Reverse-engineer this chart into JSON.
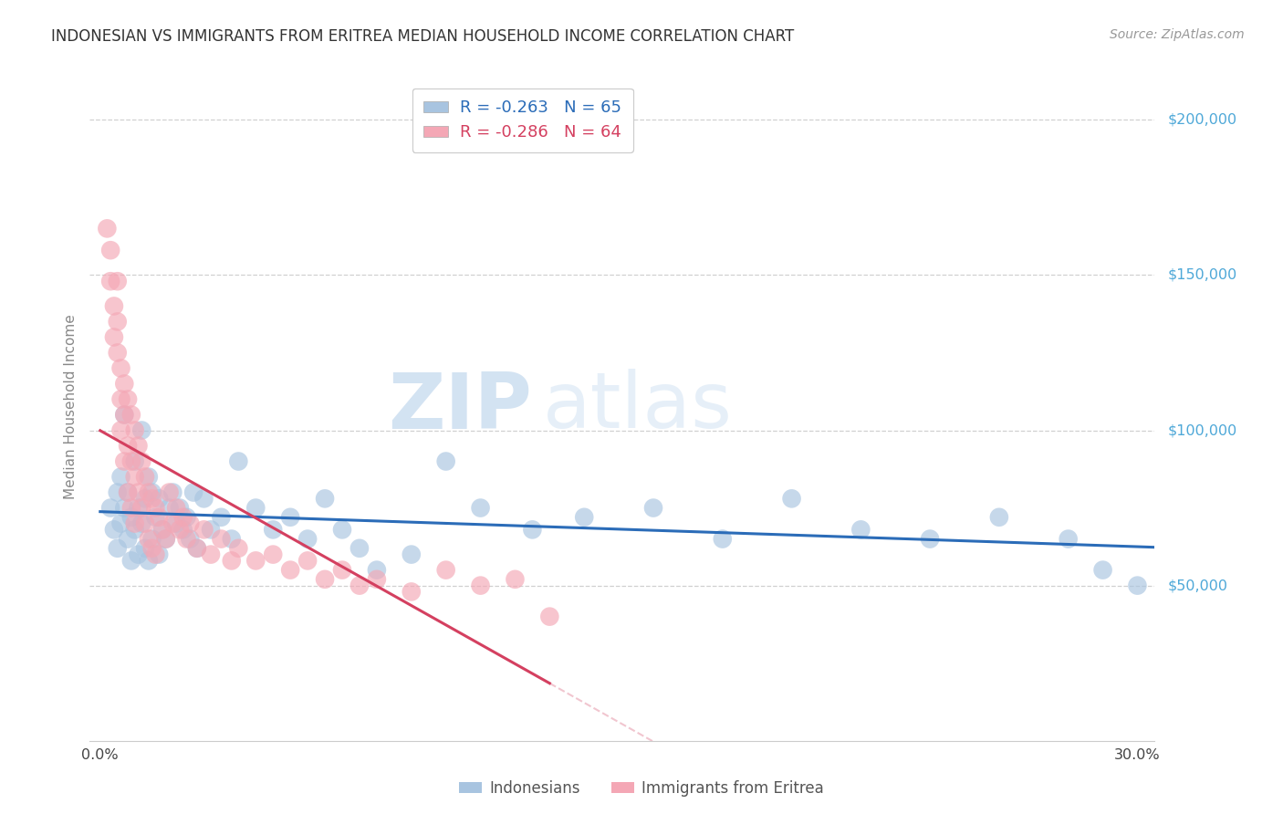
{
  "title": "INDONESIAN VS IMMIGRANTS FROM ERITREA MEDIAN HOUSEHOLD INCOME CORRELATION CHART",
  "source": "Source: ZipAtlas.com",
  "ylabel": "Median Household Income",
  "watermark_zip": "ZIP",
  "watermark_atlas": "atlas",
  "legend_blue_label": "R = -0.263   N = 65",
  "legend_pink_label": "R = -0.286   N = 64",
  "bottom_legend_blue": "Indonesians",
  "bottom_legend_pink": "Immigrants from Eritrea",
  "y_ticks": [
    50000,
    100000,
    150000,
    200000
  ],
  "y_tick_labels": [
    "$50,000",
    "$100,000",
    "$150,000",
    "$200,000"
  ],
  "blue_color": "#a8c4e0",
  "pink_color": "#f4a7b5",
  "blue_line_color": "#2b6cb8",
  "pink_line_color": "#d44060",
  "pink_dash_color": "#e8a0b0",
  "blue_scatter_x": [
    0.3,
    0.4,
    0.5,
    0.5,
    0.6,
    0.6,
    0.7,
    0.7,
    0.8,
    0.8,
    0.9,
    0.9,
    1.0,
    1.0,
    1.1,
    1.1,
    1.2,
    1.2,
    1.3,
    1.3,
    1.4,
    1.4,
    1.5,
    1.5,
    1.6,
    1.7,
    1.7,
    1.8,
    1.9,
    2.0,
    2.1,
    2.2,
    2.3,
    2.4,
    2.5,
    2.6,
    2.7,
    2.8,
    3.0,
    3.2,
    3.5,
    3.8,
    4.0,
    4.5,
    5.0,
    5.5,
    6.0,
    6.5,
    7.0,
    7.5,
    8.0,
    9.0,
    10.0,
    11.0,
    12.5,
    14.0,
    16.0,
    18.0,
    20.0,
    22.0,
    24.0,
    26.0,
    28.0,
    29.0,
    30.0
  ],
  "blue_scatter_y": [
    75000,
    68000,
    80000,
    62000,
    85000,
    70000,
    105000,
    75000,
    80000,
    65000,
    72000,
    58000,
    90000,
    68000,
    75000,
    60000,
    100000,
    70000,
    78000,
    62000,
    85000,
    58000,
    80000,
    65000,
    72000,
    78000,
    60000,
    68000,
    65000,
    75000,
    80000,
    70000,
    75000,
    68000,
    72000,
    65000,
    80000,
    62000,
    78000,
    68000,
    72000,
    65000,
    90000,
    75000,
    68000,
    72000,
    65000,
    78000,
    68000,
    62000,
    55000,
    60000,
    90000,
    75000,
    68000,
    72000,
    75000,
    65000,
    78000,
    68000,
    65000,
    72000,
    65000,
    55000,
    50000
  ],
  "pink_scatter_x": [
    0.2,
    0.3,
    0.3,
    0.4,
    0.4,
    0.5,
    0.5,
    0.5,
    0.6,
    0.6,
    0.6,
    0.7,
    0.7,
    0.7,
    0.8,
    0.8,
    0.8,
    0.9,
    0.9,
    0.9,
    1.0,
    1.0,
    1.0,
    1.1,
    1.1,
    1.2,
    1.2,
    1.3,
    1.3,
    1.4,
    1.4,
    1.5,
    1.5,
    1.6,
    1.6,
    1.7,
    1.8,
    1.9,
    2.0,
    2.1,
    2.2,
    2.3,
    2.4,
    2.5,
    2.6,
    2.8,
    3.0,
    3.2,
    3.5,
    3.8,
    4.0,
    4.5,
    5.0,
    5.5,
    6.0,
    6.5,
    7.0,
    7.5,
    8.0,
    9.0,
    10.0,
    11.0,
    12.0,
    13.0
  ],
  "pink_scatter_y": [
    165000,
    158000,
    148000,
    140000,
    130000,
    148000,
    135000,
    125000,
    120000,
    110000,
    100000,
    115000,
    105000,
    90000,
    110000,
    95000,
    80000,
    105000,
    90000,
    75000,
    100000,
    85000,
    70000,
    95000,
    80000,
    90000,
    75000,
    85000,
    70000,
    80000,
    65000,
    78000,
    62000,
    75000,
    60000,
    72000,
    68000,
    65000,
    80000,
    70000,
    75000,
    68000,
    72000,
    65000,
    70000,
    62000,
    68000,
    60000,
    65000,
    58000,
    62000,
    58000,
    60000,
    55000,
    58000,
    52000,
    55000,
    50000,
    52000,
    48000,
    55000,
    50000,
    52000,
    40000
  ],
  "pink_solid_end": 13.0,
  "pink_dash_end": 30.0,
  "xmin": 0.0,
  "xmax": 30.5,
  "ymin": 0,
  "ymax": 215000
}
